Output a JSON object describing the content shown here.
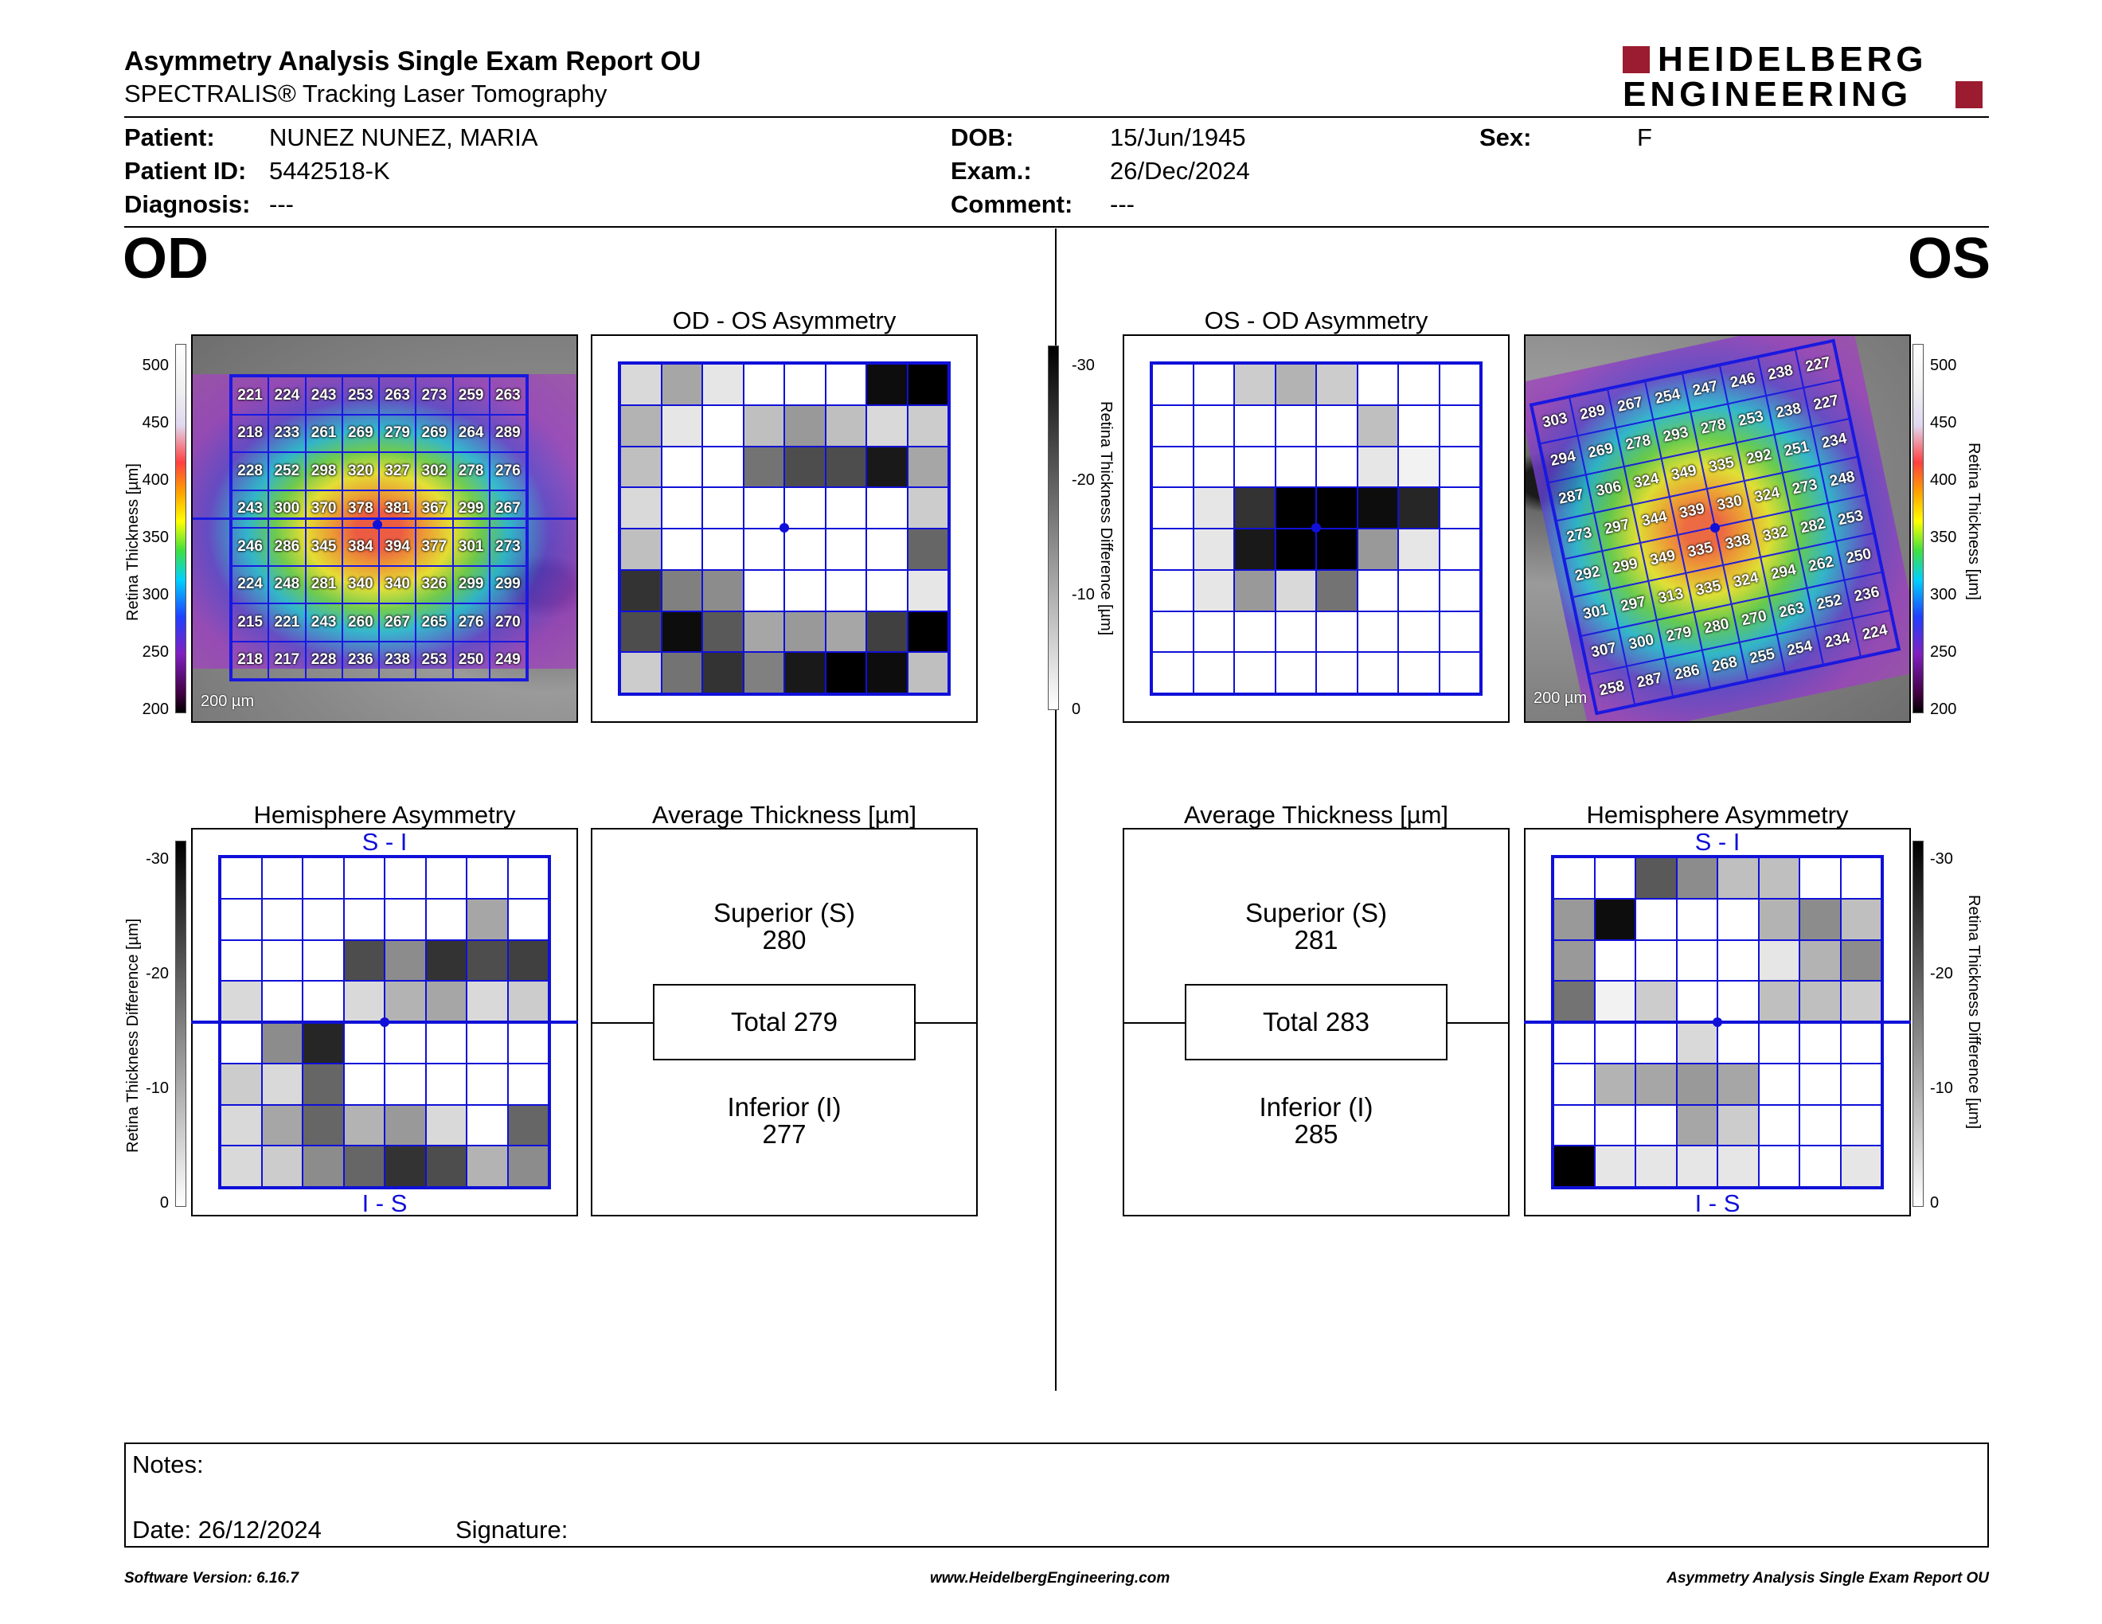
{
  "header": {
    "title": "Asymmetry Analysis Single Exam Report OU",
    "subtitle": "SPECTRALIS® Tracking Laser Tomography",
    "logo_line1": "HEIDELBERG",
    "logo_line2": "ENGINEERING"
  },
  "patient": {
    "patient_label": "Patient:",
    "patient_value": "NUNEZ NUNEZ, MARIA",
    "id_label": "Patient ID:",
    "id_value": "5442518-K",
    "diagnosis_label": "Diagnosis:",
    "diagnosis_value": "---",
    "dob_label": "DOB:",
    "dob_value": "15/Jun/1945",
    "exam_label": "Exam.:",
    "exam_value": "26/Dec/2024",
    "comment_label": "Comment:",
    "comment_value": "---",
    "sex_label": "Sex:",
    "sex_value": "F"
  },
  "eyes": {
    "od": "OD",
    "os": "OS"
  },
  "od": {
    "asym_title": "OD - OS Asymmetry",
    "hemi_title": "Hemisphere Asymmetry",
    "hemi_top": "S - I",
    "hemi_bottom": "I - S",
    "avg_title": "Average Thickness [µm]",
    "superior_label": "Superior (S)",
    "superior_value": "280",
    "total_label": "Total 279",
    "inferior_label": "Inferior (I)",
    "inferior_value": "277",
    "scale_bar": "200 µm",
    "thickness": [
      [
        "221",
        "224",
        "243",
        "253",
        "263",
        "273",
        "259",
        "263"
      ],
      [
        "218",
        "233",
        "261",
        "269",
        "279",
        "269",
        "264",
        "289"
      ],
      [
        "228",
        "252",
        "298",
        "320",
        "327",
        "302",
        "278",
        "276"
      ],
      [
        "243",
        "300",
        "370",
        "378",
        "381",
        "367",
        "299",
        "267"
      ],
      [
        "246",
        "286",
        "345",
        "384",
        "394",
        "377",
        "301",
        "273"
      ],
      [
        "224",
        "248",
        "281",
        "340",
        "340",
        "326",
        "299",
        "299"
      ],
      [
        "215",
        "221",
        "243",
        "260",
        "267",
        "265",
        "276",
        "270"
      ],
      [
        "218",
        "217",
        "228",
        "236",
        "238",
        "253",
        "250",
        "249"
      ]
    ],
    "asym_grid": [
      [
        0.15,
        0.35,
        0.1,
        0,
        0,
        0,
        0.95,
        1
      ],
      [
        0.3,
        0.1,
        0,
        0.25,
        0.4,
        0.25,
        0.15,
        0.2
      ],
      [
        0.25,
        0,
        0,
        0.55,
        0.7,
        0.7,
        0.9,
        0.35
      ],
      [
        0.15,
        0,
        0,
        0,
        0,
        0,
        0,
        0.2
      ],
      [
        0.25,
        0,
        0,
        0,
        0,
        0,
        0,
        0.6
      ],
      [
        0.8,
        0.5,
        0.45,
        0,
        0,
        0,
        0,
        0.1
      ],
      [
        0.7,
        0.95,
        0.65,
        0.35,
        0.4,
        0.35,
        0.75,
        1
      ],
      [
        0.2,
        0.55,
        0.8,
        0.5,
        0.9,
        1,
        0.95,
        0.25
      ]
    ],
    "hemi_grid": [
      [
        0,
        0,
        0,
        0,
        0,
        0,
        0,
        0
      ],
      [
        0,
        0,
        0,
        0,
        0,
        0,
        0.35,
        0
      ],
      [
        0,
        0,
        0,
        0.7,
        0.45,
        0.8,
        0.7,
        0.75
      ],
      [
        0.15,
        0,
        0,
        0.15,
        0.3,
        0.35,
        0.15,
        0.2
      ],
      [
        0,
        0.45,
        0.85,
        0,
        0,
        0,
        0,
        0
      ],
      [
        0.2,
        0.15,
        0.6,
        0,
        0,
        0,
        0,
        0
      ],
      [
        0.15,
        0.35,
        0.6,
        0.3,
        0.4,
        0.15,
        0,
        0.6
      ],
      [
        0.15,
        0.2,
        0.45,
        0.6,
        0.8,
        0.7,
        0.3,
        0.45
      ]
    ]
  },
  "os": {
    "asym_title": "OS - OD Asymmetry",
    "hemi_title": "Hemisphere Asymmetry",
    "hemi_top": "S - I",
    "hemi_bottom": "I - S",
    "avg_title": "Average Thickness [µm]",
    "superior_label": "Superior (S)",
    "superior_value": "281",
    "total_label": "Total 283",
    "inferior_label": "Inferior (I)",
    "inferior_value": "285",
    "scale_bar": "200 µm",
    "thickness": [
      [
        "303",
        "289",
        "267",
        "254",
        "247",
        "246",
        "238",
        "227"
      ],
      [
        "294",
        "269",
        "278",
        "293",
        "278",
        "253",
        "238",
        "227"
      ],
      [
        "287",
        "306",
        "324",
        "349",
        "335",
        "292",
        "251",
        "234"
      ],
      [
        "273",
        "297",
        "344",
        "339",
        "330",
        "324",
        "273",
        "248"
      ],
      [
        "292",
        "299",
        "349",
        "335",
        "338",
        "332",
        "282",
        "253"
      ],
      [
        "301",
        "297",
        "313",
        "335",
        "324",
        "294",
        "262",
        "250"
      ],
      [
        "307",
        "300",
        "279",
        "280",
        "270",
        "263",
        "252",
        "236"
      ],
      [
        "258",
        "287",
        "286",
        "268",
        "255",
        "254",
        "234",
        "224"
      ]
    ],
    "asym_grid": [
      [
        0,
        0,
        0.2,
        0.3,
        0.2,
        0,
        0,
        0
      ],
      [
        0,
        0,
        0,
        0,
        0,
        0.25,
        0,
        0
      ],
      [
        0,
        0,
        0,
        0,
        0,
        0.1,
        0.05,
        0
      ],
      [
        0,
        0.1,
        0.8,
        1,
        1,
        0.95,
        0.85,
        0
      ],
      [
        0,
        0.1,
        0.9,
        1,
        1,
        0.4,
        0.1,
        0
      ],
      [
        0,
        0.1,
        0.4,
        0.15,
        0.55,
        0,
        0,
        0
      ],
      [
        0,
        0,
        0,
        0,
        0,
        0,
        0,
        0
      ],
      [
        0,
        0,
        0,
        0,
        0,
        0,
        0,
        0
      ]
    ],
    "hemi_grid": [
      [
        0,
        0,
        0.65,
        0.45,
        0.25,
        0.25,
        0,
        0
      ],
      [
        0.4,
        0.95,
        0,
        0,
        0,
        0.3,
        0.45,
        0.25
      ],
      [
        0.4,
        0,
        0,
        0,
        0,
        0.1,
        0.3,
        0.45
      ],
      [
        0.55,
        0.05,
        0.2,
        0,
        0,
        0.25,
        0.25,
        0.2
      ],
      [
        0,
        0,
        0,
        0.15,
        0,
        0,
        0,
        0
      ],
      [
        0,
        0.3,
        0.35,
        0.4,
        0.35,
        0,
        0,
        0
      ],
      [
        0,
        0,
        0,
        0.35,
        0.2,
        0,
        0,
        0
      ],
      [
        1,
        0.1,
        0.1,
        0.1,
        0.1,
        0,
        0,
        0.1
      ]
    ]
  },
  "thickness_scale": {
    "ticks": [
      "500",
      "450",
      "400",
      "350",
      "300",
      "250",
      "200"
    ],
    "label": "Retina Thickness [µm]"
  },
  "diff_scale": {
    "ticks": [
      "-30",
      "-20",
      "-10",
      "0"
    ],
    "label": "Retina Thickness Difference [µm]"
  },
  "notes": {
    "notes_label": "Notes:",
    "date_label": "Date: 26/12/2024",
    "signature_label": "Signature:"
  },
  "footer": {
    "left": "Software Version: 6.16.7",
    "center": "www.HeidelbergEngineering.com",
    "right": "Asymmetry Analysis Single Exam Report OU"
  },
  "colors": {
    "brand": "#9b1b30",
    "grid_blue": "#1010d8"
  }
}
